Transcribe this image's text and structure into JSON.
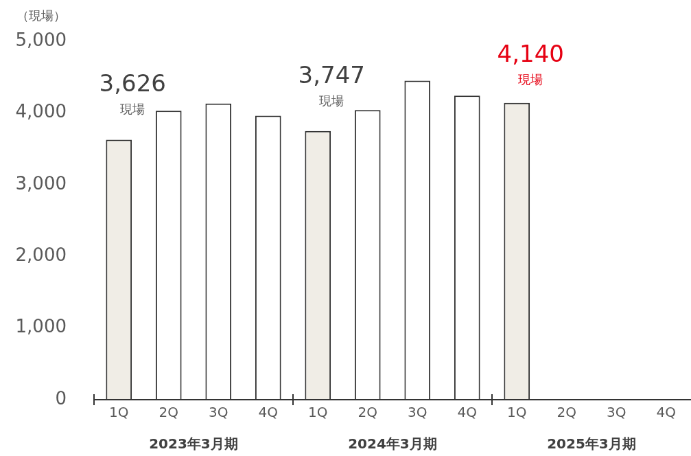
{
  "chart_data": {
    "type": "bar",
    "ylabel": "（現場）",
    "categories": [
      "1Q",
      "2Q",
      "3Q",
      "4Q",
      "1Q",
      "2Q",
      "3Q",
      "4Q",
      "1Q",
      "2Q",
      "3Q",
      "4Q"
    ],
    "values": [
      3626,
      4030,
      4130,
      3960,
      3747,
      4040,
      4450,
      4240,
      4140,
      null,
      null,
      null
    ],
    "colors": [
      "#f0ede6",
      "#ffffff",
      "#ffffff",
      "#ffffff",
      "#f0ede6",
      "#ffffff",
      "#ffffff",
      "#ffffff",
      "#f0ede6",
      "#ffffff",
      "#ffffff",
      "#ffffff"
    ],
    "value_labels": [
      "3,626",
      null,
      null,
      null,
      "3,747",
      null,
      null,
      null,
      "4,140",
      null,
      null,
      null
    ],
    "annotations": [
      "現場",
      "現場",
      "現場",
      "2023年3月期",
      "2024年3月期",
      "2025年3月期"
    ],
    "ylim": [
      0,
      5000
    ],
    "yticks": [
      0,
      {
        "value": 1000,
        "label": "1,000"
      },
      {
        "value": 2000,
        "label": "2,000"
      },
      {
        "value": 3000,
        "label": "3,000"
      },
      {
        "value": 4000,
        "label": "4,000"
      },
      {
        "value": 5000,
        "label": "5,000"
      }
    ],
    "grid": false,
    "legend": false
  }
}
